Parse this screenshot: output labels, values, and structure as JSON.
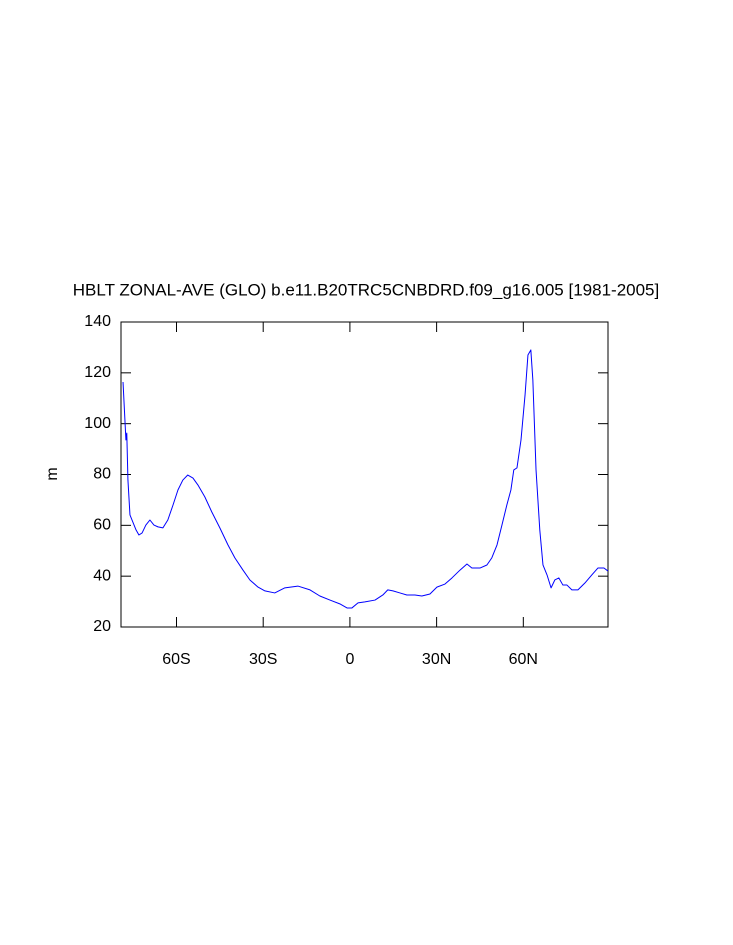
{
  "chart_data": {
    "type": "line",
    "title": "HBLT ZONAL-AVE (GLO) b.e11.B20TRC5CNBDRD.f09_g16.005 [1981-2005]",
    "y_label": "m",
    "xlim": [
      -79.2,
      89.3
    ],
    "ylim": [
      20,
      140
    ],
    "xticks": [
      {
        "value": -60,
        "label": "60S"
      },
      {
        "value": -30,
        "label": "30S"
      },
      0,
      {
        "value": 30,
        "label": "30N"
      },
      {
        "value": 60,
        "label": "60N"
      }
    ],
    "yticks": [
      20,
      40,
      60,
      80,
      100,
      120,
      140
    ],
    "grid": false,
    "series": [
      {
        "color": "#0000ff",
        "x": [
          -78.5,
          -77.5,
          -77.2,
          -76.8,
          -76.1,
          -75.1,
          -74.0,
          -73.0,
          -71.9,
          -70.6,
          -69.2,
          -67.8,
          -66.4,
          -64.7,
          -63.0,
          -61.2,
          -59.5,
          -57.8,
          -56.1,
          -54.3,
          -52.6,
          -50.2,
          -47.8,
          -45.0,
          -42.2,
          -39.8,
          -37.0,
          -34.6,
          -31.8,
          -29.4,
          -26.0,
          -22.5,
          -18.0,
          -13.8,
          -10.4,
          -6.9,
          -3.5,
          -1.0,
          0.7,
          2.8,
          5.2,
          8.7,
          11.4,
          13.1,
          14.9,
          17.3,
          19.7,
          22.5,
          24.9,
          27.7,
          30.1,
          32.9,
          35.3,
          38.1,
          40.5,
          42.2,
          45.0,
          47.4,
          49.1,
          50.9,
          52.6,
          54.3,
          55.7,
          56.7,
          57.8,
          59.2,
          60.6,
          61.6,
          62.6,
          63.3,
          64.4,
          65.7,
          66.8,
          68.2,
          69.6,
          70.9,
          72.3,
          73.7,
          75.1,
          76.8,
          78.9,
          81.3,
          83.7,
          85.8,
          87.9,
          89.3
        ],
        "values": [
          116.4,
          93.6,
          96.3,
          77.8,
          64.1,
          61.3,
          58.2,
          56.2,
          57.0,
          60.1,
          62.1,
          60.1,
          59.4,
          59.0,
          62.1,
          68.0,
          73.9,
          77.8,
          79.8,
          78.6,
          75.9,
          71.2,
          65.3,
          59.0,
          52.3,
          47.2,
          42.4,
          38.5,
          35.7,
          34.2,
          33.4,
          35.4,
          36.1,
          34.6,
          32.2,
          30.6,
          29.1,
          27.5,
          27.5,
          29.5,
          29.9,
          30.6,
          32.6,
          34.6,
          34.2,
          33.4,
          32.6,
          32.6,
          32.2,
          33.0,
          35.7,
          36.9,
          39.3,
          42.4,
          44.8,
          43.2,
          43.2,
          44.4,
          47.2,
          52.3,
          60.1,
          68.0,
          73.9,
          81.8,
          82.6,
          93.6,
          111.3,
          127.0,
          129.0,
          117.2,
          81.8,
          58.2,
          44.4,
          40.5,
          35.4,
          38.5,
          39.3,
          36.5,
          36.5,
          34.6,
          34.6,
          37.3,
          40.5,
          43.2,
          43.2,
          42.0
        ]
      }
    ]
  }
}
